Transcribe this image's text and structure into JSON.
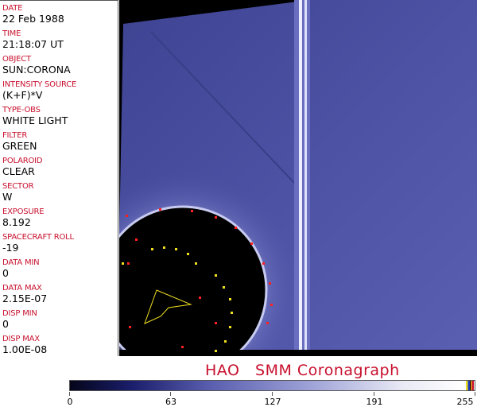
{
  "fields": [
    {
      "label": "DATE",
      "value": "22 Feb 1988"
    },
    {
      "label": "TIME",
      "value": "21:18:07 UT"
    },
    {
      "label": "OBJECT",
      "value": "SUN:CORONA"
    },
    {
      "label": "INTENSITY SOURCE",
      "value": "(K+F)*V"
    },
    {
      "label": "TYPE-OBS",
      "value": "WHITE LIGHT"
    },
    {
      "label": "FILTER",
      "value": "GREEN"
    },
    {
      "label": "POLAROID",
      "value": "CLEAR"
    },
    {
      "label": "SECTOR",
      "value": "W"
    },
    {
      "label": "EXPOSURE",
      "value": "8.192"
    },
    {
      "label": "SPACECRAFT ROLL",
      "value": "-19"
    },
    {
      "label": "DATA MIN",
      "value": "0"
    },
    {
      "label": "DATA MAX",
      "value": "2.15E-07"
    },
    {
      "label": "DISP MIN",
      "value": "0"
    },
    {
      "label": "DISP MAX",
      "value": "1.00E-08"
    }
  ],
  "title": "HAO   SMM Coronagraph",
  "colorbar": {
    "ticks": [
      "0",
      "63",
      "127",
      "191",
      "255"
    ],
    "range": [
      0,
      255
    ],
    "colors": {
      "low": "#05051a",
      "mid": "#5a5fb0",
      "high": "#ffffff"
    }
  },
  "colors": {
    "label": "#c8102e",
    "image_blue": "#4a4f9e"
  }
}
